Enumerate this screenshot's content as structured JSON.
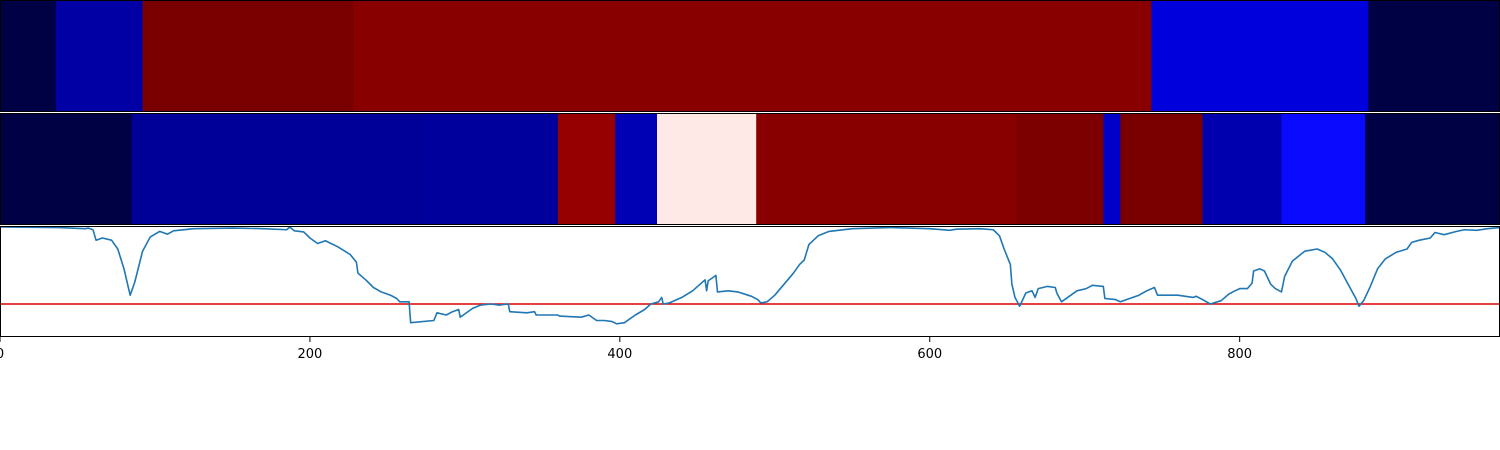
{
  "chart_data": [
    {
      "type": "heatmap",
      "segments": [
        {
          "start": 0,
          "end": 36,
          "color": "#000044"
        },
        {
          "start": 36,
          "end": 92,
          "color": "#0000a4"
        },
        {
          "start": 92,
          "end": 228,
          "color": "#7a0000"
        },
        {
          "start": 228,
          "end": 743,
          "color": "#880000"
        },
        {
          "start": 743,
          "end": 883,
          "color": "#0000dc"
        },
        {
          "start": 883,
          "end": 968,
          "color": "#000044"
        }
      ]
    },
    {
      "type": "heatmap",
      "segments": [
        {
          "start": 0,
          "end": 85,
          "color": "#000044"
        },
        {
          "start": 85,
          "end": 273,
          "color": "#000099"
        },
        {
          "start": 273,
          "end": 360,
          "color": "#00009c"
        },
        {
          "start": 360,
          "end": 397,
          "color": "#960000"
        },
        {
          "start": 397,
          "end": 424,
          "color": "#0000b4"
        },
        {
          "start": 424,
          "end": 488,
          "color": "#ffe9e6"
        },
        {
          "start": 488,
          "end": 656,
          "color": "#880000"
        },
        {
          "start": 656,
          "end": 712,
          "color": "#7c0000"
        },
        {
          "start": 712,
          "end": 723,
          "color": "#0000c8"
        },
        {
          "start": 723,
          "end": 776,
          "color": "#7a0000"
        },
        {
          "start": 776,
          "end": 827,
          "color": "#0000ae"
        },
        {
          "start": 827,
          "end": 881,
          "color": "#0a0aff"
        },
        {
          "start": 881,
          "end": 968,
          "color": "#000044"
        }
      ]
    },
    {
      "type": "line",
      "xlim": [
        0,
        968
      ],
      "ylim": [
        0,
        1
      ],
      "grid": false,
      "xticks": [
        {
          "value": 0,
          "label": "0"
        },
        {
          "value": 200,
          "label": "200"
        },
        {
          "value": 400,
          "label": "400"
        },
        {
          "value": 600,
          "label": "600"
        },
        {
          "value": 800,
          "label": "800"
        }
      ],
      "threshold": {
        "y": 0.3,
        "color": "#dd0000"
      },
      "series": [
        {
          "color": "#1f77b4",
          "points": [
            [
              0,
              1.0
            ],
            [
              38,
              0.995
            ],
            [
              55,
              0.985
            ],
            [
              57,
              0.99
            ],
            [
              60,
              0.975
            ],
            [
              62,
              0.88
            ],
            [
              66,
              0.9
            ],
            [
              72,
              0.88
            ],
            [
              76,
              0.8
            ],
            [
              80,
              0.62
            ],
            [
              84,
              0.38
            ],
            [
              87,
              0.5
            ],
            [
              92,
              0.78
            ],
            [
              97,
              0.91
            ],
            [
              103,
              0.96
            ],
            [
              108,
              0.935
            ],
            [
              112,
              0.965
            ],
            [
              125,
              0.985
            ],
            [
              150,
              0.99
            ],
            [
              170,
              0.985
            ],
            [
              185,
              0.975
            ],
            [
              187,
              1.0
            ],
            [
              190,
              0.965
            ],
            [
              196,
              0.955
            ],
            [
              200,
              0.9
            ],
            [
              205,
              0.85
            ],
            [
              210,
              0.875
            ],
            [
              218,
              0.82
            ],
            [
              226,
              0.75
            ],
            [
              230,
              0.68
            ],
            [
              231,
              0.58
            ],
            [
              236,
              0.52
            ],
            [
              241,
              0.45
            ],
            [
              246,
              0.41
            ],
            [
              252,
              0.38
            ],
            [
              256,
              0.35
            ],
            [
              258,
              0.32
            ],
            [
              264,
              0.32
            ],
            [
              265,
              0.13
            ],
            [
              280,
              0.15
            ],
            [
              282,
              0.22
            ],
            [
              288,
              0.2
            ],
            [
              292,
              0.23
            ],
            [
              296,
              0.25
            ],
            [
              297,
              0.18
            ],
            [
              300,
              0.21
            ],
            [
              305,
              0.26
            ],
            [
              310,
              0.29
            ],
            [
              317,
              0.3
            ],
            [
              322,
              0.29
            ],
            [
              328,
              0.3
            ],
            [
              329,
              0.23
            ],
            [
              340,
              0.22
            ],
            [
              345,
              0.23
            ],
            [
              346,
              0.2
            ],
            [
              360,
              0.2
            ],
            [
              361,
              0.19
            ],
            [
              375,
              0.18
            ],
            [
              380,
              0.2
            ],
            [
              385,
              0.15
            ],
            [
              390,
              0.15
            ],
            [
              395,
              0.14
            ],
            [
              398,
              0.12
            ],
            [
              403,
              0.13
            ],
            [
              410,
              0.2
            ],
            [
              416,
              0.25
            ],
            [
              420,
              0.3
            ],
            [
              425,
              0.32
            ],
            [
              427,
              0.36
            ],
            [
              428,
              0.3
            ],
            [
              432,
              0.31
            ],
            [
              440,
              0.36
            ],
            [
              447,
              0.42
            ],
            [
              451,
              0.47
            ],
            [
              455,
              0.52
            ],
            [
              456,
              0.42
            ],
            [
              457,
              0.51
            ],
            [
              462,
              0.56
            ],
            [
              463,
              0.41
            ],
            [
              470,
              0.42
            ],
            [
              476,
              0.41
            ],
            [
              485,
              0.37
            ],
            [
              489,
              0.34
            ],
            [
              491,
              0.31
            ],
            [
              495,
              0.32
            ],
            [
              500,
              0.38
            ],
            [
              506,
              0.48
            ],
            [
              512,
              0.58
            ],
            [
              516,
              0.66
            ],
            [
              519,
              0.7
            ],
            [
              522,
              0.84
            ],
            [
              528,
              0.92
            ],
            [
              535,
              0.96
            ],
            [
              550,
              0.985
            ],
            [
              575,
              0.995
            ],
            [
              600,
              0.985
            ],
            [
              613,
              0.97
            ],
            [
              617,
              0.98
            ],
            [
              632,
              0.985
            ],
            [
              641,
              0.975
            ],
            [
              645,
              0.92
            ],
            [
              648,
              0.8
            ],
            [
              652,
              0.66
            ],
            [
              653,
              0.48
            ],
            [
              655,
              0.36
            ],
            [
              658,
              0.28
            ],
            [
              660,
              0.34
            ],
            [
              662,
              0.4
            ],
            [
              666,
              0.42
            ],
            [
              668,
              0.36
            ],
            [
              670,
              0.44
            ],
            [
              676,
              0.46
            ],
            [
              681,
              0.45
            ],
            [
              682,
              0.4
            ],
            [
              685,
              0.32
            ],
            [
              690,
              0.37
            ],
            [
              695,
              0.42
            ],
            [
              701,
              0.44
            ],
            [
              705,
              0.47
            ],
            [
              712,
              0.46
            ],
            [
              713,
              0.35
            ],
            [
              720,
              0.34
            ],
            [
              723,
              0.32
            ],
            [
              735,
              0.38
            ],
            [
              740,
              0.42
            ],
            [
              745,
              0.45
            ],
            [
              747,
              0.38
            ],
            [
              760,
              0.38
            ],
            [
              770,
              0.36
            ],
            [
              772,
              0.37
            ],
            [
              776,
              0.34
            ],
            [
              781,
              0.3
            ],
            [
              788,
              0.33
            ],
            [
              793,
              0.39
            ],
            [
              797,
              0.42
            ],
            [
              800,
              0.44
            ],
            [
              805,
              0.44
            ],
            [
              808,
              0.49
            ],
            [
              809,
              0.6
            ],
            [
              813,
              0.62
            ],
            [
              816,
              0.6
            ],
            [
              820,
              0.48
            ],
            [
              823,
              0.44
            ],
            [
              827,
              0.41
            ],
            [
              829,
              0.55
            ],
            [
              834,
              0.69
            ],
            [
              842,
              0.78
            ],
            [
              850,
              0.8
            ],
            [
              855,
              0.77
            ],
            [
              860,
              0.71
            ],
            [
              865,
              0.61
            ],
            [
              870,
              0.48
            ],
            [
              875,
              0.35
            ],
            [
              877,
              0.28
            ],
            [
              880,
              0.33
            ],
            [
              884,
              0.45
            ],
            [
              889,
              0.62
            ],
            [
              894,
              0.71
            ],
            [
              901,
              0.77
            ],
            [
              908,
              0.8
            ],
            [
              911,
              0.86
            ],
            [
              916,
              0.88
            ],
            [
              923,
              0.9
            ],
            [
              926,
              0.95
            ],
            [
              932,
              0.93
            ],
            [
              940,
              0.96
            ],
            [
              945,
              0.975
            ],
            [
              953,
              0.97
            ],
            [
              960,
              0.985
            ],
            [
              968,
              0.995
            ]
          ]
        }
      ]
    }
  ]
}
